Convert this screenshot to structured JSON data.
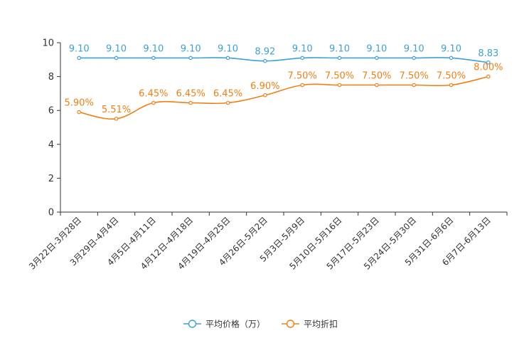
{
  "chart_data": {
    "type": "line",
    "title": "",
    "xlabel": "",
    "ylabel": "",
    "ylim": [
      0,
      10
    ],
    "yticks": [
      0,
      2,
      4,
      6,
      8,
      10
    ],
    "grid": false,
    "legend_position": "bottom",
    "categories": [
      "3月22日-3月28日",
      "3月29日-4月4日",
      "4月5日-4月11日",
      "4月12日-4月18日",
      "4月19日-4月25日",
      "4月26日-5月2日",
      "5月3日-5月9日",
      "5月10日-5月16日",
      "5月17日-5月23日",
      "5月24日-5月30日",
      "5月31日-6月6日",
      "6月7日-6月13日"
    ],
    "series": [
      {
        "name": "平均价格（万）",
        "color": "#3fa0d4",
        "values": [
          9.1,
          9.1,
          9.1,
          9.1,
          9.1,
          8.92,
          9.1,
          9.1,
          9.1,
          9.1,
          9.1,
          8.83
        ],
        "labels": [
          "9.10",
          "9.10",
          "9.10",
          "9.10",
          "9.10",
          "8.92",
          "9.10",
          "9.10",
          "9.10",
          "9.10",
          "9.10",
          "8.83"
        ]
      },
      {
        "name": "平均折扣",
        "color": "#f07f16",
        "values": [
          5.9,
          5.51,
          6.45,
          6.45,
          6.45,
          6.9,
          7.5,
          7.5,
          7.5,
          7.5,
          7.5,
          8.0
        ],
        "labels": [
          "5.90%",
          "5.51%",
          "6.45%",
          "6.45%",
          "6.45%",
          "6.90%",
          "7.50%",
          "7.50%",
          "7.50%",
          "7.50%",
          "7.50%",
          "8.00%"
        ]
      }
    ]
  }
}
